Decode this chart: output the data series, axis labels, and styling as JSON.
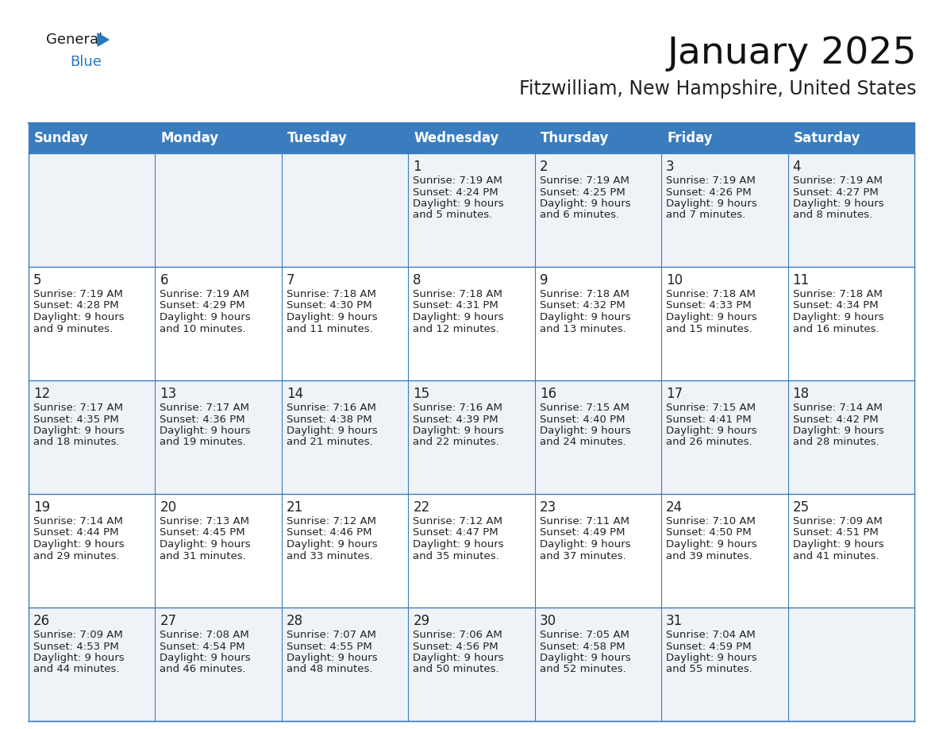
{
  "title": "January 2025",
  "subtitle": "Fitzwilliam, New Hampshire, United States",
  "header_color": "#3a7dbf",
  "header_text_color": "#ffffff",
  "row_bg_odd": "#eff3f8",
  "row_bg_even": "#ffffff",
  "border_color": "#3a7dbf",
  "text_color": "#222222",
  "day_names": [
    "Sunday",
    "Monday",
    "Tuesday",
    "Wednesday",
    "Thursday",
    "Friday",
    "Saturday"
  ],
  "days": {
    "1": {
      "sunrise": "7:19 AM",
      "sunset": "4:24 PM",
      "daylight_h": "9 hours",
      "daylight_m": "and 5 minutes."
    },
    "2": {
      "sunrise": "7:19 AM",
      "sunset": "4:25 PM",
      "daylight_h": "9 hours",
      "daylight_m": "and 6 minutes."
    },
    "3": {
      "sunrise": "7:19 AM",
      "sunset": "4:26 PM",
      "daylight_h": "9 hours",
      "daylight_m": "and 7 minutes."
    },
    "4": {
      "sunrise": "7:19 AM",
      "sunset": "4:27 PM",
      "daylight_h": "9 hours",
      "daylight_m": "and 8 minutes."
    },
    "5": {
      "sunrise": "7:19 AM",
      "sunset": "4:28 PM",
      "daylight_h": "9 hours",
      "daylight_m": "and 9 minutes."
    },
    "6": {
      "sunrise": "7:19 AM",
      "sunset": "4:29 PM",
      "daylight_h": "9 hours",
      "daylight_m": "and 10 minutes."
    },
    "7": {
      "sunrise": "7:18 AM",
      "sunset": "4:30 PM",
      "daylight_h": "9 hours",
      "daylight_m": "and 11 minutes."
    },
    "8": {
      "sunrise": "7:18 AM",
      "sunset": "4:31 PM",
      "daylight_h": "9 hours",
      "daylight_m": "and 12 minutes."
    },
    "9": {
      "sunrise": "7:18 AM",
      "sunset": "4:32 PM",
      "daylight_h": "9 hours",
      "daylight_m": "and 13 minutes."
    },
    "10": {
      "sunrise": "7:18 AM",
      "sunset": "4:33 PM",
      "daylight_h": "9 hours",
      "daylight_m": "and 15 minutes."
    },
    "11": {
      "sunrise": "7:18 AM",
      "sunset": "4:34 PM",
      "daylight_h": "9 hours",
      "daylight_m": "and 16 minutes."
    },
    "12": {
      "sunrise": "7:17 AM",
      "sunset": "4:35 PM",
      "daylight_h": "9 hours",
      "daylight_m": "and 18 minutes."
    },
    "13": {
      "sunrise": "7:17 AM",
      "sunset": "4:36 PM",
      "daylight_h": "9 hours",
      "daylight_m": "and 19 minutes."
    },
    "14": {
      "sunrise": "7:16 AM",
      "sunset": "4:38 PM",
      "daylight_h": "9 hours",
      "daylight_m": "and 21 minutes."
    },
    "15": {
      "sunrise": "7:16 AM",
      "sunset": "4:39 PM",
      "daylight_h": "9 hours",
      "daylight_m": "and 22 minutes."
    },
    "16": {
      "sunrise": "7:15 AM",
      "sunset": "4:40 PM",
      "daylight_h": "9 hours",
      "daylight_m": "and 24 minutes."
    },
    "17": {
      "sunrise": "7:15 AM",
      "sunset": "4:41 PM",
      "daylight_h": "9 hours",
      "daylight_m": "and 26 minutes."
    },
    "18": {
      "sunrise": "7:14 AM",
      "sunset": "4:42 PM",
      "daylight_h": "9 hours",
      "daylight_m": "and 28 minutes."
    },
    "19": {
      "sunrise": "7:14 AM",
      "sunset": "4:44 PM",
      "daylight_h": "9 hours",
      "daylight_m": "and 29 minutes."
    },
    "20": {
      "sunrise": "7:13 AM",
      "sunset": "4:45 PM",
      "daylight_h": "9 hours",
      "daylight_m": "and 31 minutes."
    },
    "21": {
      "sunrise": "7:12 AM",
      "sunset": "4:46 PM",
      "daylight_h": "9 hours",
      "daylight_m": "and 33 minutes."
    },
    "22": {
      "sunrise": "7:12 AM",
      "sunset": "4:47 PM",
      "daylight_h": "9 hours",
      "daylight_m": "and 35 minutes."
    },
    "23": {
      "sunrise": "7:11 AM",
      "sunset": "4:49 PM",
      "daylight_h": "9 hours",
      "daylight_m": "and 37 minutes."
    },
    "24": {
      "sunrise": "7:10 AM",
      "sunset": "4:50 PM",
      "daylight_h": "9 hours",
      "daylight_m": "and 39 minutes."
    },
    "25": {
      "sunrise": "7:09 AM",
      "sunset": "4:51 PM",
      "daylight_h": "9 hours",
      "daylight_m": "and 41 minutes."
    },
    "26": {
      "sunrise": "7:09 AM",
      "sunset": "4:53 PM",
      "daylight_h": "9 hours",
      "daylight_m": "and 44 minutes."
    },
    "27": {
      "sunrise": "7:08 AM",
      "sunset": "4:54 PM",
      "daylight_h": "9 hours",
      "daylight_m": "and 46 minutes."
    },
    "28": {
      "sunrise": "7:07 AM",
      "sunset": "4:55 PM",
      "daylight_h": "9 hours",
      "daylight_m": "and 48 minutes."
    },
    "29": {
      "sunrise": "7:06 AM",
      "sunset": "4:56 PM",
      "daylight_h": "9 hours",
      "daylight_m": "and 50 minutes."
    },
    "30": {
      "sunrise": "7:05 AM",
      "sunset": "4:58 PM",
      "daylight_h": "9 hours",
      "daylight_m": "and 52 minutes."
    },
    "31": {
      "sunrise": "7:04 AM",
      "sunset": "4:59 PM",
      "daylight_h": "9 hours",
      "daylight_m": "and 55 minutes."
    }
  },
  "weeks": [
    [
      null,
      null,
      null,
      1,
      2,
      3,
      4
    ],
    [
      5,
      6,
      7,
      8,
      9,
      10,
      11
    ],
    [
      12,
      13,
      14,
      15,
      16,
      17,
      18
    ],
    [
      19,
      20,
      21,
      22,
      23,
      24,
      25
    ],
    [
      26,
      27,
      28,
      29,
      30,
      31,
      null
    ]
  ],
  "logo_general_color": "#1a1a1a",
  "logo_blue_color": "#2878c0",
  "logo_triangle_color": "#2878c0",
  "title_fontsize": 34,
  "subtitle_fontsize": 17,
  "header_fontsize": 12,
  "daynum_fontsize": 12,
  "cell_fontsize": 9.5
}
